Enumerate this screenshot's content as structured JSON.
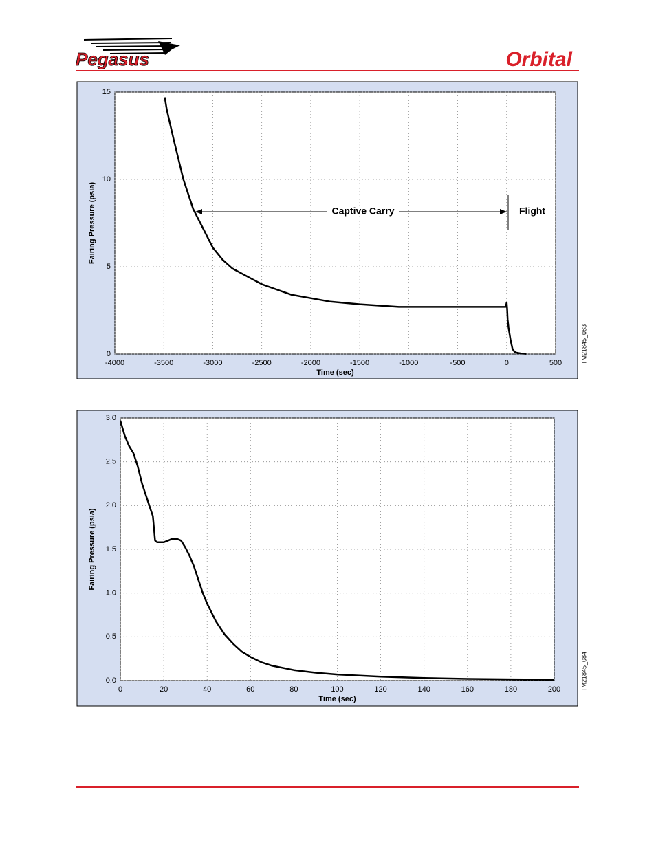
{
  "header": {
    "left_logo": "Pegasus",
    "right_logo": "Orbital"
  },
  "chart_data": [
    {
      "type": "line",
      "figure_id": "TM21845_083",
      "xlabel": "Time (sec)",
      "ylabel": "Fairing Pressure (psia)",
      "annotations": [
        "Captive Carry",
        "Flight"
      ],
      "xlim": [
        -4000,
        500
      ],
      "xticks": [
        -4000,
        -3500,
        -3000,
        -2500,
        -2000,
        -1500,
        -1000,
        -500,
        0,
        500
      ],
      "ylim": [
        0,
        15
      ],
      "yticks": [
        0,
        5,
        10,
        15
      ],
      "grid": true,
      "series": [
        {
          "color": "#000000",
          "x": [
            -3490,
            -3470,
            -3400,
            -3300,
            -3200,
            -3100,
            -3000,
            -2900,
            -2800,
            -2700,
            -2600,
            -2500,
            -2400,
            -2300,
            -2200,
            -2000,
            -1800,
            -1500,
            -1100,
            -500,
            -10,
            0,
            5,
            10,
            20,
            40,
            60,
            80,
            100,
            150,
            200
          ],
          "values": [
            14.7,
            14.0,
            12.3,
            10.0,
            8.3,
            7.2,
            6.1,
            5.4,
            4.9,
            4.6,
            4.3,
            4.0,
            3.8,
            3.6,
            3.4,
            3.2,
            3.0,
            2.85,
            2.7,
            2.7,
            2.7,
            2.95,
            2.6,
            2.0,
            1.5,
            0.8,
            0.3,
            0.13,
            0.08,
            0.03,
            0.01
          ]
        }
      ]
    },
    {
      "type": "line",
      "figure_id": "TM21845_084",
      "xlabel": "Time (sec)",
      "ylabel": "Fairing Pressure (psia)",
      "xlim": [
        0,
        200
      ],
      "xticks": [
        0,
        20,
        40,
        60,
        80,
        100,
        120,
        140,
        160,
        180,
        200
      ],
      "ylim": [
        0,
        3
      ],
      "yticks": [
        {
          "value": 0,
          "label": "0.0"
        },
        0.5,
        {
          "value": 1,
          "label": "1.0"
        },
        1.5,
        {
          "value": 2,
          "label": "2.0"
        },
        2.5,
        {
          "value": 3,
          "label": "3.0"
        }
      ],
      "grid": true,
      "series": [
        {
          "color": "#000000",
          "x": [
            0,
            2,
            4,
            6,
            8,
            10,
            12,
            14,
            15,
            16,
            17,
            20,
            22,
            24,
            26,
            28,
            30,
            32,
            34,
            36,
            38,
            40,
            44,
            48,
            52,
            56,
            60,
            65,
            70,
            80,
            90,
            100,
            120,
            140,
            160,
            180,
            200
          ],
          "values": [
            2.97,
            2.8,
            2.68,
            2.6,
            2.45,
            2.25,
            2.1,
            1.95,
            1.88,
            1.6,
            1.58,
            1.58,
            1.6,
            1.62,
            1.62,
            1.6,
            1.52,
            1.42,
            1.3,
            1.15,
            1.0,
            0.88,
            0.68,
            0.53,
            0.42,
            0.33,
            0.27,
            0.21,
            0.17,
            0.12,
            0.09,
            0.07,
            0.045,
            0.03,
            0.02,
            0.015,
            0.01
          ]
        }
      ]
    }
  ]
}
